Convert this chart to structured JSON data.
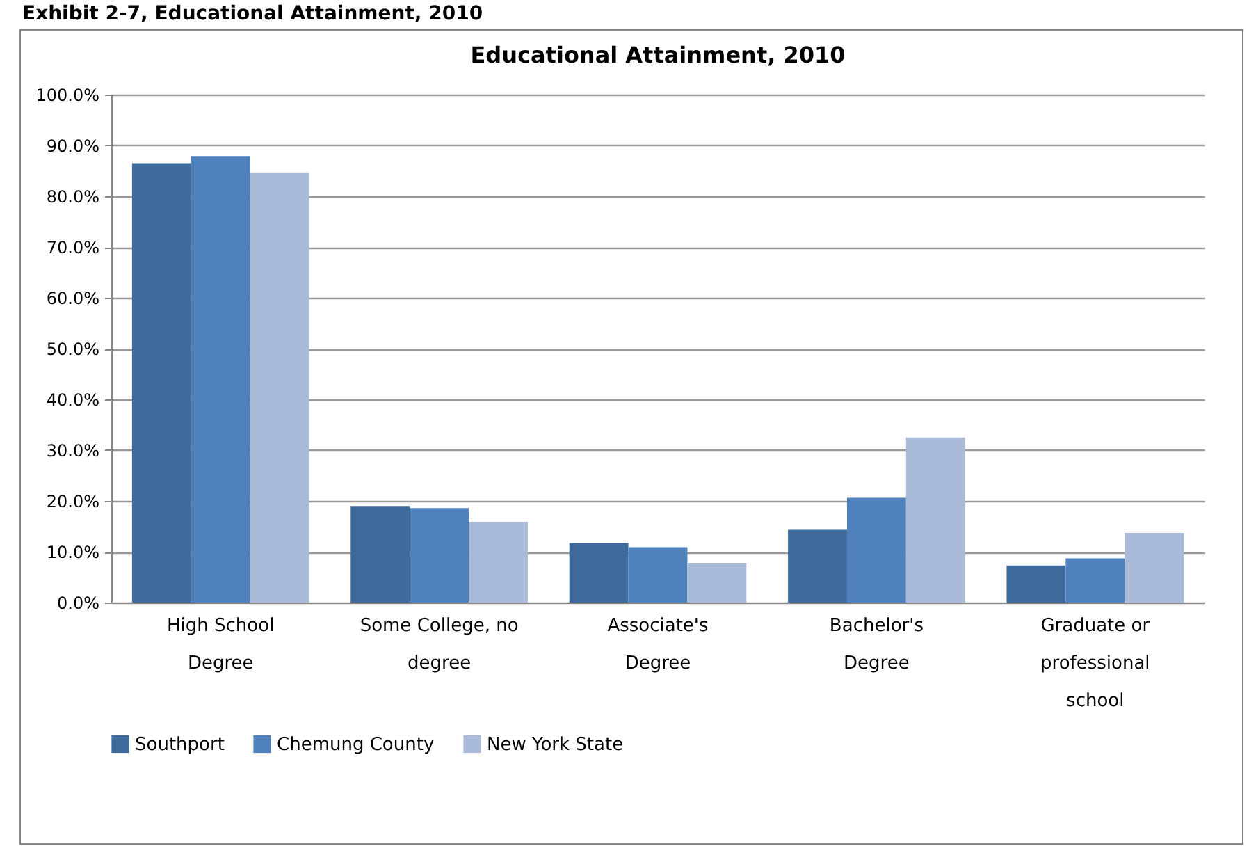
{
  "chart_data": {
    "type": "bar",
    "title": "Educational Attainment, 2010",
    "annotations": [
      "Exhibit 2-7, Educational Attainment, 2010"
    ],
    "categories": [
      "High School Degree",
      "Some College, no degree",
      "Associate's Degree",
      "Bachelor's Degree",
      "Graduate or professional school"
    ],
    "series": [
      {
        "name": "Southport",
        "color": "#3f6a9c",
        "values": [
          86.5,
          19.0,
          11.7,
          14.3,
          7.3
        ]
      },
      {
        "name": "Chemung County",
        "color": "#4f81bd",
        "values": [
          87.9,
          18.6,
          10.9,
          20.6,
          8.7
        ]
      },
      {
        "name": "New York State",
        "color": "#aabbd9",
        "values": [
          84.7,
          15.9,
          7.8,
          32.5,
          13.7
        ]
      }
    ],
    "ylim": [
      0,
      100
    ],
    "yticks": [
      {
        "value": 0,
        "label": "0.0%"
      },
      {
        "value": 10,
        "label": "10.0%"
      },
      {
        "value": 20,
        "label": "20.0%"
      },
      {
        "value": 30,
        "label": "30.0%"
      },
      {
        "value": 40,
        "label": "40.0%"
      },
      {
        "value": 50,
        "label": "50.0%"
      },
      {
        "value": 60,
        "label": "60.0%"
      },
      {
        "value": 70,
        "label": "70.0%"
      },
      {
        "value": 80,
        "label": "80.0%"
      },
      {
        "value": 90,
        "label": "90.0%"
      },
      {
        "value": 100,
        "label": "100.0%"
      }
    ],
    "grid": "y",
    "legend": "bottom"
  }
}
